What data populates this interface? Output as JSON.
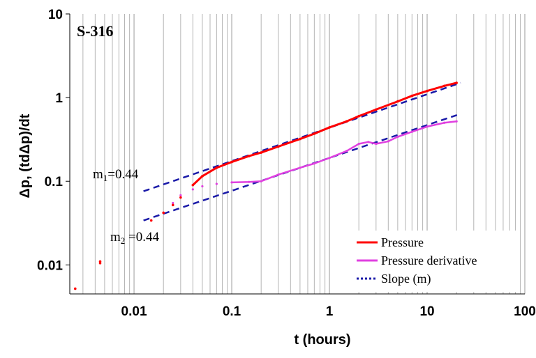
{
  "chart_data": {
    "type": "scatter",
    "well_label": "S-316",
    "xlabel": "t (hours)",
    "ylabel": "Δp, (tdΔp)/dt",
    "x_scale": "log",
    "y_scale": "log",
    "xlim": [
      0.0022,
      100
    ],
    "ylim": [
      0.0045,
      10
    ],
    "x_ticks": [
      {
        "value": 0.01,
        "label": "0.01"
      },
      {
        "value": 0.1,
        "label": "0.1"
      },
      {
        "value": 1,
        "label": "1"
      },
      {
        "value": 10,
        "label": "10"
      },
      {
        "value": 100,
        "label": "100"
      }
    ],
    "y_ticks": [
      {
        "value": 0.01,
        "label": "0.01"
      },
      {
        "value": 0.1,
        "label": "0.1"
      },
      {
        "value": 1,
        "label": "1"
      },
      {
        "value": 10,
        "label": "10"
      }
    ],
    "grid": "vertical minor and major lines",
    "legend_position": "bottom-right",
    "legend": [
      {
        "label": "Pressure",
        "color": "#ff0000",
        "style": "solid"
      },
      {
        "label": "Pressure derivative",
        "color": "#e040e0",
        "style": "solid"
      },
      {
        "label": "Slope (m)",
        "color": "#1a1aa8",
        "style": "dotted"
      }
    ],
    "annotations": [
      {
        "prefix": "m",
        "sub": "1",
        "suffix": "=0.44"
      },
      {
        "prefix": "m",
        "sub": "2",
        "suffix": " =0.44"
      }
    ],
    "series": [
      {
        "name": "Pressure",
        "color": "#ff0000",
        "x": [
          0.0025,
          0.0045,
          0.0045,
          0.015,
          0.02,
          0.025,
          0.03,
          0.04,
          0.05,
          0.07,
          0.1,
          0.15,
          0.2,
          0.3,
          0.5,
          0.7,
          1,
          1.5,
          2,
          3,
          5,
          7,
          10,
          15,
          20
        ],
        "y": [
          0.0052,
          0.0105,
          0.011,
          0.034,
          0.042,
          0.052,
          0.064,
          0.09,
          0.115,
          0.145,
          0.17,
          0.2,
          0.22,
          0.26,
          0.32,
          0.37,
          0.44,
          0.52,
          0.6,
          0.72,
          0.9,
          1.05,
          1.2,
          1.38,
          1.5
        ]
      },
      {
        "name": "Pressure derivative",
        "color": "#e040e0",
        "x": [
          0.015,
          0.02,
          0.025,
          0.03,
          0.04,
          0.05,
          0.07,
          0.1,
          0.15,
          0.2,
          0.3,
          0.5,
          0.7,
          1,
          1.5,
          2,
          2.5,
          3,
          4,
          5,
          7,
          10,
          15,
          20
        ],
        "y": [
          0.034,
          0.042,
          0.055,
          0.068,
          0.08,
          0.087,
          0.093,
          0.097,
          0.098,
          0.1,
          0.12,
          0.145,
          0.163,
          0.19,
          0.23,
          0.28,
          0.295,
          0.28,
          0.3,
          0.34,
          0.39,
          0.45,
          0.5,
          0.52
        ]
      },
      {
        "name": "Slope (m)",
        "segment": "upper",
        "color": "#1a1aa8",
        "x": [
          0.0125,
          22
        ],
        "y": [
          0.076,
          1.5
        ]
      },
      {
        "name": "Slope (m)",
        "segment": "lower",
        "color": "#1a1aa8",
        "x": [
          0.0125,
          22
        ],
        "y": [
          0.034,
          0.64
        ]
      }
    ]
  }
}
